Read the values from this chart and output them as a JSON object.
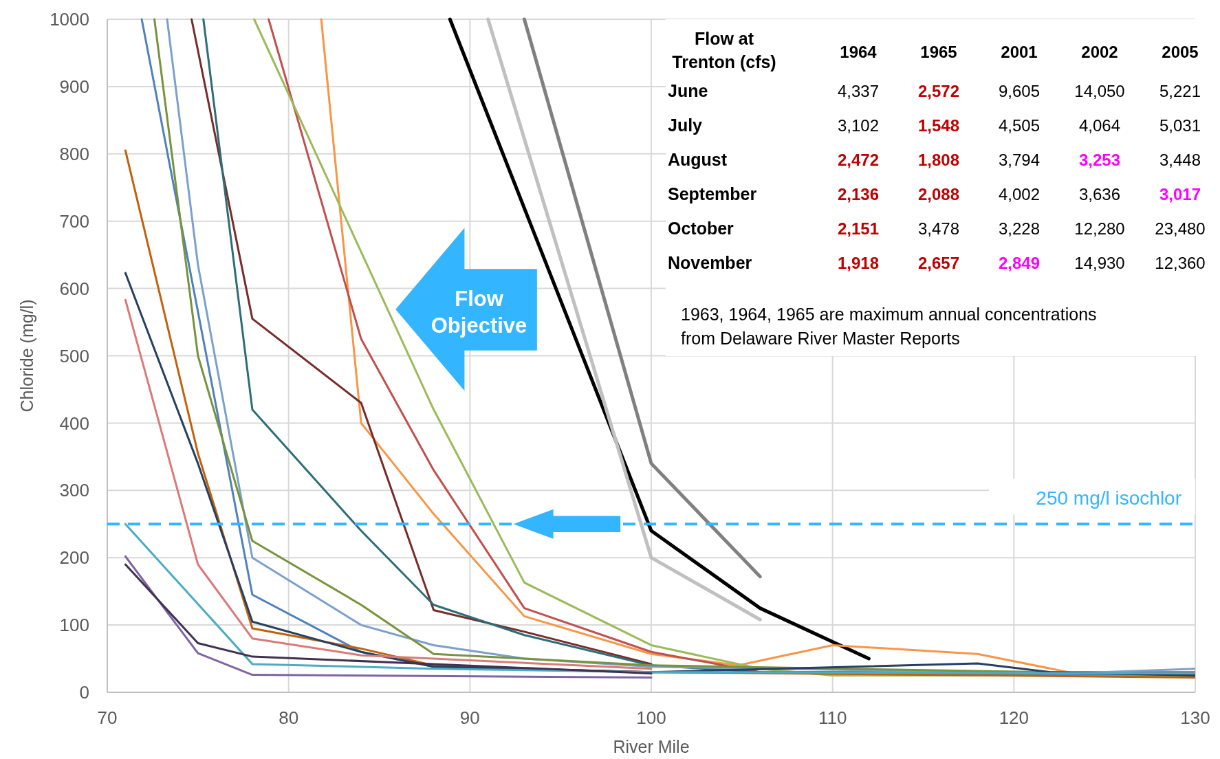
{
  "chart_data": [
    {
      "type": "line",
      "xlabel": "River Mile",
      "ylabel": "Chloride (mg/l)",
      "xlim": [
        70,
        130
      ],
      "ylim": [
        0,
        1000
      ],
      "xticks": [
        70,
        80,
        90,
        100,
        110,
        120,
        130
      ],
      "yticks": [
        0,
        100,
        200,
        300,
        400,
        500,
        600,
        700,
        800,
        900,
        1000
      ],
      "grid": true,
      "marker": "none",
      "line_style": "solid",
      "series": [
        {
          "color": "#000000",
          "x": [
            88.9,
            100,
            106,
            112
          ],
          "values": [
            1000,
            240,
            125,
            50
          ]
        },
        {
          "color": "#c0c0c0",
          "x": [
            91,
            100,
            106
          ],
          "values": [
            1000,
            200,
            108
          ]
        },
        {
          "color": "#808080",
          "x": [
            93,
            100,
            106
          ],
          "values": [
            1000,
            340,
            172
          ]
        },
        {
          "color": "#f79646",
          "x": [
            81.8,
            84,
            88,
            93,
            100,
            104.8,
            110,
            118,
            123,
            130
          ],
          "values": [
            1000,
            400,
            265,
            113,
            57,
            40,
            70,
            57,
            30,
            28
          ]
        },
        {
          "color": "#c0504d",
          "x": [
            78.9,
            84,
            88,
            93,
            100,
            106,
            130
          ],
          "values": [
            1000,
            525,
            330,
            125,
            60,
            30,
            30
          ]
        },
        {
          "color": "#9bbb59",
          "x": [
            78.1,
            88,
            93,
            100,
            106,
            110,
            130
          ],
          "values": [
            1000,
            420,
            163,
            70,
            35,
            25,
            25
          ]
        },
        {
          "color": "#772c2a",
          "x": [
            74.65,
            78,
            84,
            88,
            93,
            100
          ],
          "values": [
            1000,
            555,
            430,
            122,
            90,
            42
          ]
        },
        {
          "color": "#2c6e78",
          "x": [
            75.3,
            78,
            84,
            88,
            93,
            100,
            106,
            130
          ],
          "values": [
            1000,
            420,
            240,
            130,
            85,
            40,
            30,
            28
          ]
        },
        {
          "color": "#4f81bd",
          "x": [
            71.9,
            78,
            84,
            88,
            100,
            130
          ],
          "values": [
            1000,
            145,
            60,
            38,
            30,
            26
          ]
        },
        {
          "color": "#7ba0cd",
          "x": [
            73.3,
            75,
            78,
            84,
            88,
            93,
            100,
            123,
            130
          ],
          "values": [
            1000,
            635,
            200,
            100,
            70,
            50,
            38,
            28,
            35
          ]
        },
        {
          "color": "#77933c",
          "x": [
            72.6,
            75,
            78,
            84,
            88,
            93,
            100,
            130
          ],
          "values": [
            1000,
            500,
            225,
            130,
            57,
            50,
            40,
            26
          ]
        },
        {
          "color": "#c0620c",
          "x": [
            71,
            75,
            78,
            84,
            88,
            93,
            100,
            130
          ],
          "values": [
            805,
            355,
            95,
            65,
            40,
            35,
            30,
            22
          ]
        },
        {
          "color": "#254061",
          "x": [
            71,
            75,
            78,
            84,
            88,
            100,
            118,
            122,
            130
          ],
          "values": [
            623,
            340,
            105,
            60,
            38,
            30,
            43,
            30,
            25
          ]
        },
        {
          "color": "#da7a78",
          "x": [
            71,
            75,
            78,
            84,
            88,
            100
          ],
          "values": [
            583,
            190,
            80,
            55,
            50,
            35
          ]
        },
        {
          "color": "#4bacc6",
          "x": [
            71,
            78,
            88,
            100,
            130
          ],
          "values": [
            250,
            42,
            35,
            30,
            28
          ]
        },
        {
          "color": "#8064a2",
          "x": [
            71,
            75,
            78,
            100
          ],
          "values": [
            202,
            58,
            26,
            22
          ]
        },
        {
          "color": "#403152",
          "x": [
            71,
            75,
            78,
            88,
            100
          ],
          "values": [
            190,
            73,
            53,
            42,
            28
          ]
        }
      ],
      "ref_lines": [
        {
          "axis": "y",
          "value": 250,
          "label": "250 mg/l isochlor",
          "color": "#33b5ff",
          "line_style": "dashed"
        }
      ],
      "annotations": [
        "Flow Objective"
      ]
    },
    {
      "type": "other",
      "title": "Flow at Trenton (cfs)",
      "categories": [
        "1964",
        "1965",
        "2001",
        "2002",
        "2005"
      ],
      "y_categories": [
        "June",
        "July",
        "August",
        "September",
        "October",
        "November"
      ],
      "cell_labels": [
        [
          "4,337",
          "2,572",
          "9,605",
          "14,050",
          "5,221"
        ],
        [
          "3,102",
          "1,548",
          "4,505",
          "4,064",
          "5,031"
        ],
        [
          "2,472",
          "1,808",
          "3,794",
          "3,253",
          "3,448"
        ],
        [
          "2,136",
          "2,088",
          "4,002",
          "3,636",
          "3,017"
        ],
        [
          "2,151",
          "3,478",
          "3,228",
          "12,280",
          "23,480"
        ],
        [
          "1,918",
          "2,657",
          "2,849",
          "14,930",
          "12,360"
        ]
      ],
      "colors": [
        "#000000",
        "#c00000",
        "#000000",
        "#000000",
        "#000000",
        "#000000",
        "#c00000",
        "#000000",
        "#000000",
        "#000000",
        "#c00000",
        "#c00000",
        "#000000",
        "#ff00ff",
        "#000000",
        "#c00000",
        "#c00000",
        "#000000",
        "#000000",
        "#ff00ff",
        "#c00000",
        "#000000",
        "#000000",
        "#000000",
        "#000000",
        "#c00000",
        "#c00000",
        "#ff00ff",
        "#000000",
        "#000000"
      ],
      "annotations": [
        "1963, 1964, 1965 are maximum annual concentrations from Delaware River Master Reports"
      ]
    }
  ]
}
